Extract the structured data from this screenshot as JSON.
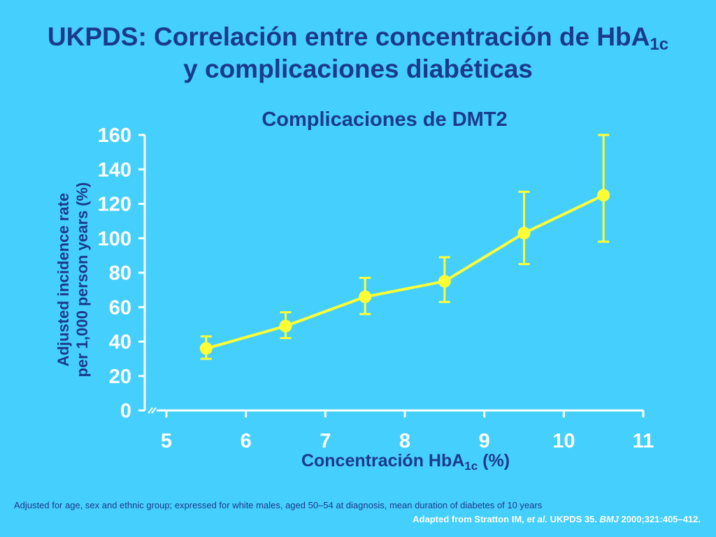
{
  "title": {
    "line1_text": "UKPDS: Correlación entre concentración de HbA",
    "line1_sub": "1c",
    "line2": "y complicaciones diabéticas"
  },
  "footnote": "Adjusted for age, sex and ethnic group; expressed for white males, aged 50–54 at diagnosis, mean duration of diabetes of 10 years",
  "source": {
    "prefix": "Adapted from Stratton IM, ",
    "etal": "et al.",
    "middle": " UKPDS 35. ",
    "journal": "BMJ",
    "suffix": " 2000;321:405–412."
  },
  "colors": {
    "background": "#45CFFD",
    "text": "#1B3A8C",
    "series": "#FFFF33",
    "axis": "#FFFFFF"
  },
  "chart_data": {
    "type": "line",
    "title": "Complicaciones de DMT2",
    "xlabel_text": "Concentración HbA",
    "xlabel_sub": "1c",
    "xlabel_suffix": " (%)",
    "ylabel_line1": "Adjusted incidence rate",
    "ylabel_line2": "per 1,000 person years (%)",
    "xlim": [
      5,
      11
    ],
    "ylim": [
      0,
      160
    ],
    "x_ticks": [
      "5",
      "6",
      "7",
      "8",
      "9",
      "10",
      "11"
    ],
    "y_ticks": [
      "0",
      "20",
      "40",
      "60",
      "80",
      "100",
      "120",
      "140",
      "160"
    ],
    "grid": false,
    "axis_break": true,
    "series": [
      {
        "x": [
          5.5,
          6.5,
          7.5,
          8.5,
          9.5,
          10.5
        ],
        "y": [
          36,
          49,
          66,
          75,
          103,
          125
        ],
        "error_low": [
          30,
          42,
          56,
          63,
          85,
          98
        ],
        "error_high": [
          43,
          57,
          77,
          89,
          127,
          160
        ]
      }
    ]
  }
}
